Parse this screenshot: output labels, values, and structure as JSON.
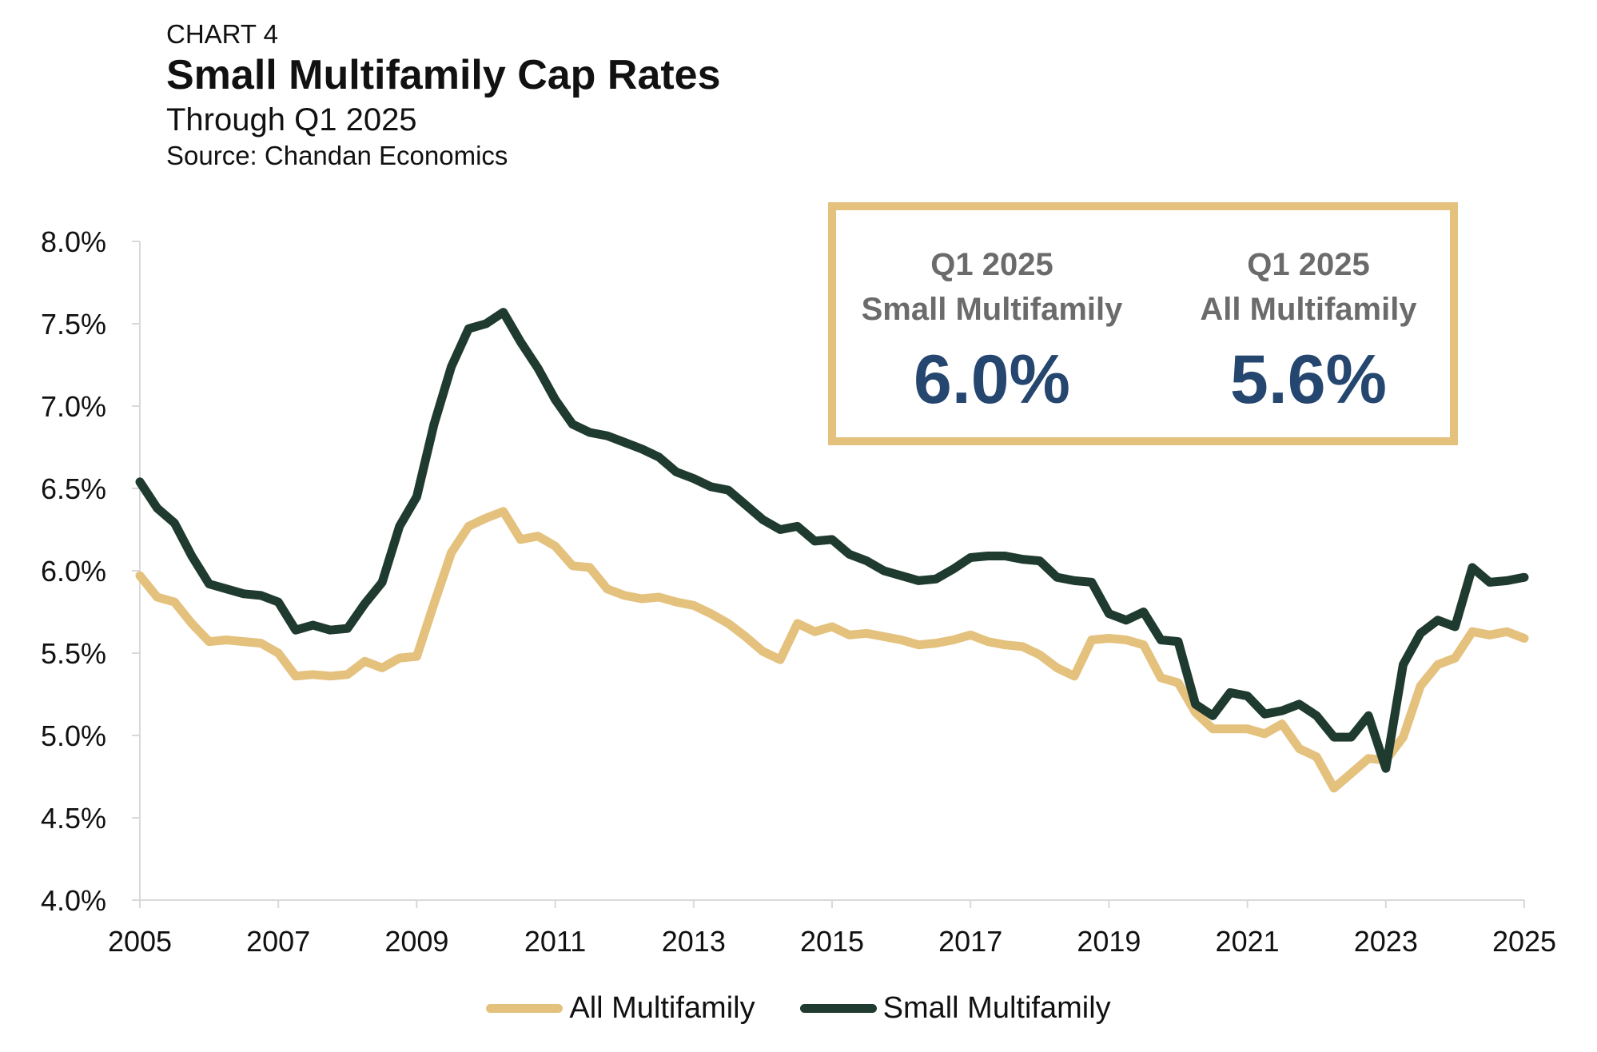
{
  "header": {
    "kicker": "CHART 4",
    "title": "Small Multifamily Cap Rates",
    "subtitle": "Through Q1 2025",
    "source": "Source: Chandan Economics"
  },
  "callout": {
    "small": {
      "line1": "Q1 2025",
      "line2": "Small Multifamily",
      "value": "6.0%"
    },
    "all": {
      "line1": "Q1 2025",
      "line2": "All Multifamily",
      "value": "5.6%"
    }
  },
  "colors": {
    "all": "#e4c17d",
    "small": "#1f3a2f",
    "callout_value": "#25466f",
    "callout_border": "#e4c17d"
  },
  "chart_data": {
    "type": "line",
    "title": "Small Multifamily Cap Rates",
    "ylim": [
      4.0,
      8.0
    ],
    "xlim": [
      2005,
      2025
    ],
    "y_ticks": [
      "4.0%",
      "4.5%",
      "5.0%",
      "5.5%",
      "6.0%",
      "6.5%",
      "7.0%",
      "7.5%",
      "8.0%"
    ],
    "y_tick_values": [
      4.0,
      4.5,
      5.0,
      5.5,
      6.0,
      6.5,
      7.0,
      7.5,
      8.0
    ],
    "x_ticks": [
      "2005",
      "2007",
      "2009",
      "2011",
      "2013",
      "2015",
      "2017",
      "2019",
      "2021",
      "2023",
      "2025"
    ],
    "x_tick_values": [
      2005,
      2007,
      2009,
      2011,
      2013,
      2015,
      2017,
      2019,
      2021,
      2023,
      2025
    ],
    "legend_position": "bottom",
    "series": [
      {
        "name": "All Multifamily",
        "color": "#e4c17d",
        "x": [
          2005.0,
          2005.25,
          2005.5,
          2005.75,
          2006.0,
          2006.25,
          2006.5,
          2006.75,
          2007.0,
          2007.25,
          2007.5,
          2007.75,
          2008.0,
          2008.25,
          2008.5,
          2008.75,
          2009.0,
          2009.25,
          2009.5,
          2009.75,
          2010.0,
          2010.25,
          2010.5,
          2010.75,
          2011.0,
          2011.25,
          2011.5,
          2011.75,
          2012.0,
          2012.25,
          2012.5,
          2012.75,
          2013.0,
          2013.25,
          2013.5,
          2013.75,
          2014.0,
          2014.25,
          2014.5,
          2014.75,
          2015.0,
          2015.25,
          2015.5,
          2015.75,
          2016.0,
          2016.25,
          2016.5,
          2016.75,
          2017.0,
          2017.25,
          2017.5,
          2017.75,
          2018.0,
          2018.25,
          2018.5,
          2018.75,
          2019.0,
          2019.25,
          2019.5,
          2019.75,
          2020.0,
          2020.25,
          2020.5,
          2020.75,
          2021.0,
          2021.25,
          2021.5,
          2021.75,
          2022.0,
          2022.25,
          2022.5,
          2022.75,
          2023.0,
          2023.25,
          2023.5,
          2023.75,
          2024.0,
          2024.25,
          2024.5,
          2024.75,
          2025.0
        ],
        "y": [
          5.97,
          5.84,
          5.81,
          5.68,
          5.57,
          5.58,
          5.57,
          5.56,
          5.5,
          5.36,
          5.37,
          5.36,
          5.37,
          5.45,
          5.41,
          5.47,
          5.48,
          5.8,
          6.11,
          6.27,
          6.32,
          6.36,
          6.19,
          6.21,
          6.15,
          6.03,
          6.02,
          5.89,
          5.85,
          5.83,
          5.84,
          5.81,
          5.79,
          5.74,
          5.68,
          5.6,
          5.51,
          5.46,
          5.68,
          5.63,
          5.66,
          5.61,
          5.62,
          5.6,
          5.58,
          5.55,
          5.56,
          5.58,
          5.61,
          5.57,
          5.55,
          5.54,
          5.49,
          5.41,
          5.36,
          5.58,
          5.59,
          5.58,
          5.55,
          5.35,
          5.32,
          5.14,
          5.04,
          5.04,
          5.04,
          5.01,
          5.07,
          4.92,
          4.87,
          4.68,
          4.77,
          4.86,
          4.85,
          4.99,
          5.3,
          5.43,
          5.47,
          5.63,
          5.61,
          5.63,
          5.59
        ]
      },
      {
        "name": "Small Multifamily",
        "color": "#1f3a2f",
        "x": [
          2005.0,
          2005.25,
          2005.5,
          2005.75,
          2006.0,
          2006.25,
          2006.5,
          2006.75,
          2007.0,
          2007.25,
          2007.5,
          2007.75,
          2008.0,
          2008.25,
          2008.5,
          2008.75,
          2009.0,
          2009.25,
          2009.5,
          2009.75,
          2010.0,
          2010.25,
          2010.5,
          2010.75,
          2011.0,
          2011.25,
          2011.5,
          2011.75,
          2012.0,
          2012.25,
          2012.5,
          2012.75,
          2013.0,
          2013.25,
          2013.5,
          2013.75,
          2014.0,
          2014.25,
          2014.5,
          2014.75,
          2015.0,
          2015.25,
          2015.5,
          2015.75,
          2016.0,
          2016.25,
          2016.5,
          2016.75,
          2017.0,
          2017.25,
          2017.5,
          2017.75,
          2018.0,
          2018.25,
          2018.5,
          2018.75,
          2019.0,
          2019.25,
          2019.5,
          2019.75,
          2020.0,
          2020.25,
          2020.5,
          2020.75,
          2021.0,
          2021.25,
          2021.5,
          2021.75,
          2022.0,
          2022.25,
          2022.5,
          2022.75,
          2023.0,
          2023.25,
          2023.5,
          2023.75,
          2024.0,
          2024.25,
          2024.5,
          2024.75,
          2025.0
        ],
        "y": [
          6.54,
          6.38,
          6.29,
          6.09,
          5.92,
          5.89,
          5.86,
          5.85,
          5.81,
          5.64,
          5.67,
          5.64,
          5.65,
          5.8,
          5.93,
          6.27,
          6.45,
          6.89,
          7.24,
          7.47,
          7.5,
          7.57,
          7.39,
          7.23,
          7.04,
          6.89,
          6.84,
          6.82,
          6.78,
          6.74,
          6.69,
          6.6,
          6.56,
          6.51,
          6.49,
          6.4,
          6.31,
          6.25,
          6.27,
          6.18,
          6.19,
          6.1,
          6.06,
          6.0,
          5.97,
          5.94,
          5.95,
          6.01,
          6.08,
          6.09,
          6.09,
          6.07,
          6.06,
          5.96,
          5.94,
          5.93,
          5.74,
          5.7,
          5.75,
          5.58,
          5.57,
          5.19,
          5.12,
          5.26,
          5.24,
          5.13,
          5.15,
          5.19,
          5.12,
          4.99,
          4.99,
          5.12,
          4.8,
          5.43,
          5.62,
          5.7,
          5.66,
          6.02,
          5.93,
          5.94,
          5.96
        ]
      }
    ]
  }
}
